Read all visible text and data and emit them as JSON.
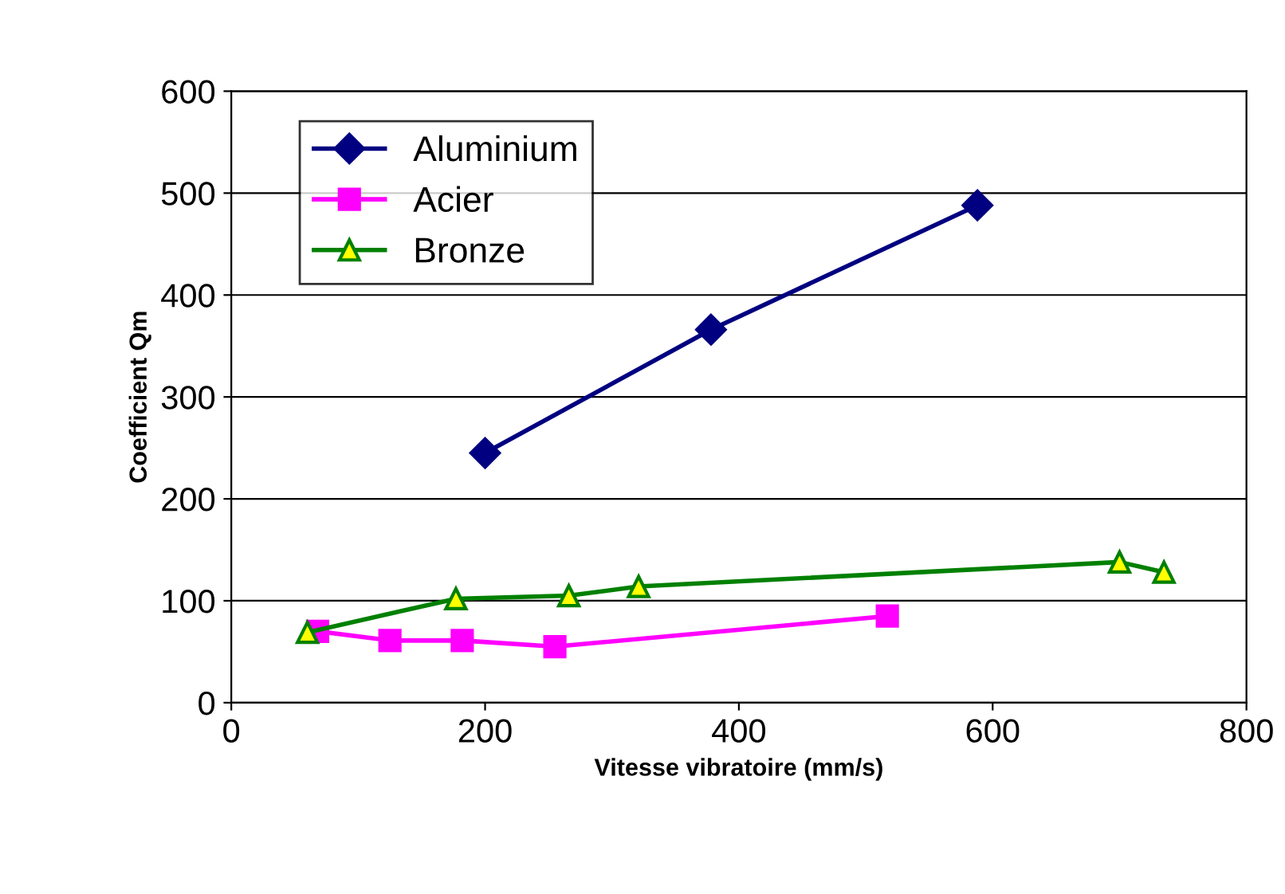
{
  "chart_data": {
    "type": "line",
    "xlabel": "Vitesse vibratoire (mm/s)",
    "ylabel": "Coefficient Qm",
    "xlim": [
      0,
      800
    ],
    "xticks": [
      0,
      200,
      400,
      600,
      800
    ],
    "ylim": [
      0,
      600
    ],
    "yticks": [
      0,
      100,
      200,
      300,
      400,
      500,
      600
    ],
    "grid": "y",
    "legend": "top left",
    "series": [
      {
        "name": "Aluminium",
        "color": "#000080",
        "marker": "diamond",
        "x": [
          200,
          378,
          588
        ],
        "values": [
          245,
          366,
          488
        ]
      },
      {
        "name": "Acier",
        "color": "#ff00ff",
        "marker": "square",
        "x": [
          68,
          125,
          182,
          255,
          517
        ],
        "values": [
          70,
          61,
          61,
          55,
          85
        ]
      },
      {
        "name": "Bronze",
        "color": "#008000",
        "marker": "triangle",
        "x": [
          60,
          177,
          266,
          321,
          700,
          735
        ],
        "values": [
          69,
          102,
          105,
          114,
          138,
          128
        ]
      }
    ]
  }
}
